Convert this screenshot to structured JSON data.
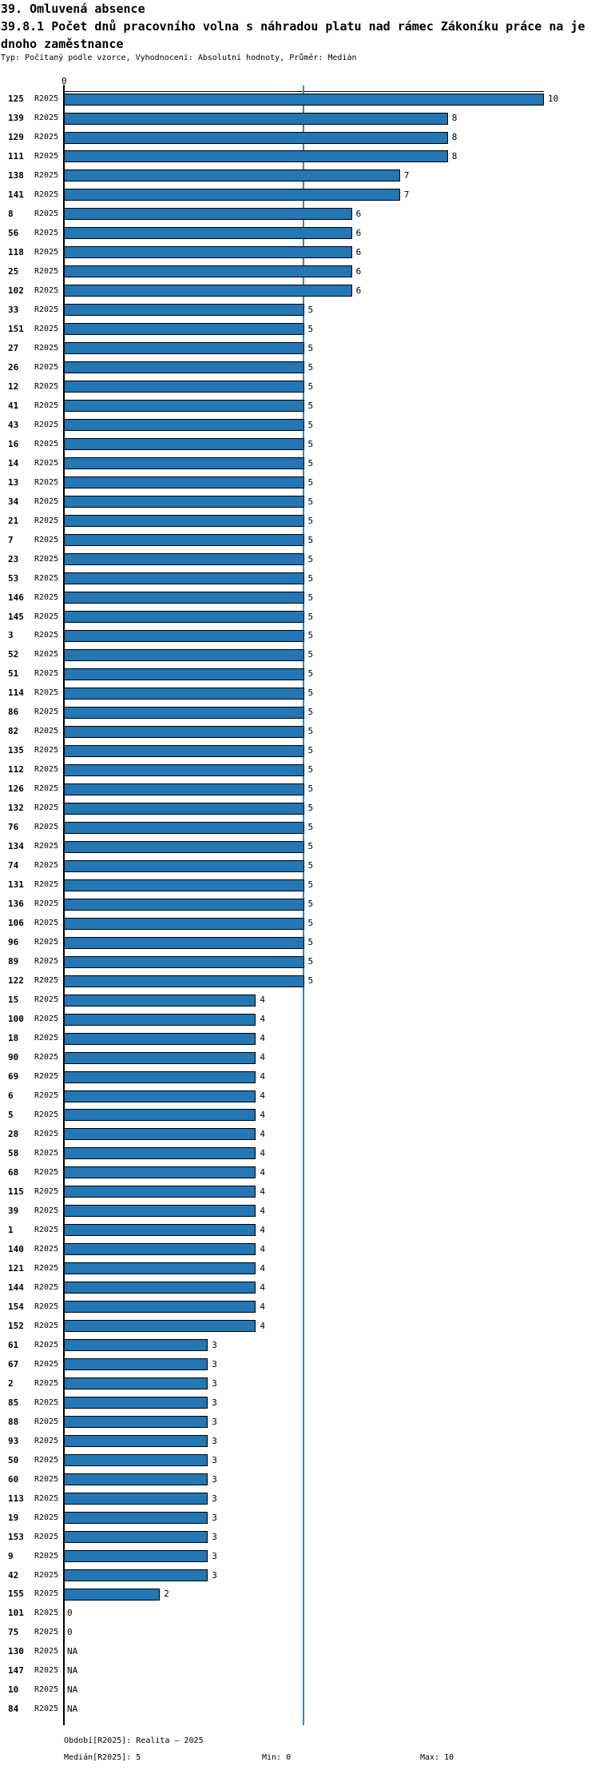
{
  "colors": {
    "bar_fill": "#2277b4",
    "bar_border": "#000000",
    "median_line": "#3a87be",
    "text": "#000000",
    "background": "#ffffff"
  },
  "footer": {
    "period": "Období[R2025]: Realita – 2025",
    "median": "Medián[R2025]: 5",
    "min": "Min: 0",
    "max": "Max: 10"
  },
  "chart_data": {
    "type": "bar",
    "orientation": "horizontal",
    "title_lines": [
      "39. Omluvená absence",
      "39.8.1 Počet dnů pracovního volna s náhradou platu nad rámec Zákoníku práce na je",
      "dnoho zaměstnance"
    ],
    "subtitle": "Typ: Počítaný podle vzorce, Vyhodnocení: Absolutní hodnoty, Průměr: Medián",
    "series_label": "R2025",
    "na_text": "NA",
    "x_ticks": [
      "0"
    ],
    "xlim": [
      0,
      10
    ],
    "median_line_value": 5,
    "stats": {
      "median": 5,
      "min": 0,
      "max": 10
    },
    "categories": [
      "125",
      "139",
      "129",
      "111",
      "138",
      "141",
      "8",
      "56",
      "118",
      "25",
      "102",
      "33",
      "151",
      "27",
      "26",
      "12",
      "41",
      "43",
      "16",
      "14",
      "13",
      "34",
      "21",
      "7",
      "23",
      "53",
      "146",
      "145",
      "3",
      "52",
      "51",
      "114",
      "86",
      "82",
      "135",
      "112",
      "126",
      "132",
      "76",
      "134",
      "74",
      "131",
      "136",
      "106",
      "96",
      "89",
      "122",
      "15",
      "100",
      "18",
      "90",
      "69",
      "6",
      "5",
      "28",
      "58",
      "68",
      "115",
      "39",
      "1",
      "140",
      "121",
      "144",
      "154",
      "152",
      "61",
      "67",
      "2",
      "85",
      "88",
      "93",
      "50",
      "60",
      "113",
      "19",
      "153",
      "9",
      "42",
      "155",
      "101",
      "75",
      "130",
      "147",
      "10",
      "84"
    ],
    "values": [
      10,
      8,
      8,
      8,
      7,
      7,
      6,
      6,
      6,
      6,
      6,
      5,
      5,
      5,
      5,
      5,
      5,
      5,
      5,
      5,
      5,
      5,
      5,
      5,
      5,
      5,
      5,
      5,
      5,
      5,
      5,
      5,
      5,
      5,
      5,
      5,
      5,
      5,
      5,
      5,
      5,
      5,
      5,
      5,
      5,
      5,
      5,
      4,
      4,
      4,
      4,
      4,
      4,
      4,
      4,
      4,
      4,
      4,
      4,
      4,
      4,
      4,
      4,
      4,
      4,
      3,
      3,
      3,
      3,
      3,
      3,
      3,
      3,
      3,
      3,
      3,
      3,
      3,
      2,
      0,
      0,
      "NA",
      "NA",
      "NA",
      "NA"
    ]
  }
}
